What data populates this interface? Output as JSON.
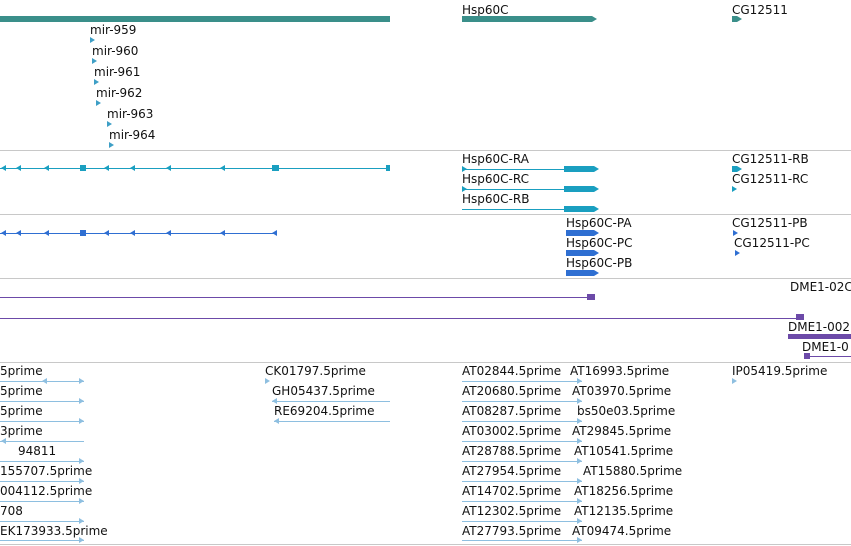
{
  "colors": {
    "gene": "#3a8f8a",
    "mirna": "#3e9fc6",
    "transcript": "#1a9fc0",
    "cds": "#2f6fd2",
    "repeat": "#6c4aa8",
    "est": "#8ebfe0",
    "separator": "#c8c8c8"
  },
  "tracks": {
    "genes": {
      "labels": [
        "Hsp60C",
        "CG12511",
        "mir-959",
        "mir-960",
        "mir-961",
        "mir-962",
        "mir-963",
        "mir-964"
      ]
    },
    "transcripts": {
      "labels": [
        "Hsp60C-RA",
        "Hsp60C-RC",
        "Hsp60C-RB",
        "CG12511-RB",
        "CG12511-RC"
      ]
    },
    "proteins": {
      "labels": [
        "Hsp60C-PA",
        "Hsp60C-PC",
        "Hsp60C-PB",
        "CG12511-PB",
        "CG12511-PC"
      ]
    },
    "repeats": {
      "labels": [
        "DME1-02C",
        "DME1-002",
        "DME1-0"
      ]
    },
    "ests": {
      "labels": [
        "5prime",
        "5prime",
        "5prime",
        "3prime",
        "94811",
        "155707.5prime",
        "004112.5prime",
        "708",
        "EK173933.5prime",
        "CK01797.5prime",
        "GH05437.5prime",
        "RE69204.5prime",
        "AT02844.5prime",
        "AT20680.5prime",
        "AT08287.5prime",
        "AT03002.5prime",
        "AT28788.5prime",
        "AT27954.5prime",
        "AT14702.5prime",
        "AT12302.5prime",
        "AT27793.5prime",
        "AT16993.5prime",
        "AT03970.5prime",
        "bs50e03.5prime",
        "AT29845.5prime",
        "AT10541.5prime",
        "AT15880.5prime",
        "AT18256.5prime",
        "AT12135.5prime",
        "AT09474.5prime",
        "IP05419.5prime"
      ]
    }
  }
}
